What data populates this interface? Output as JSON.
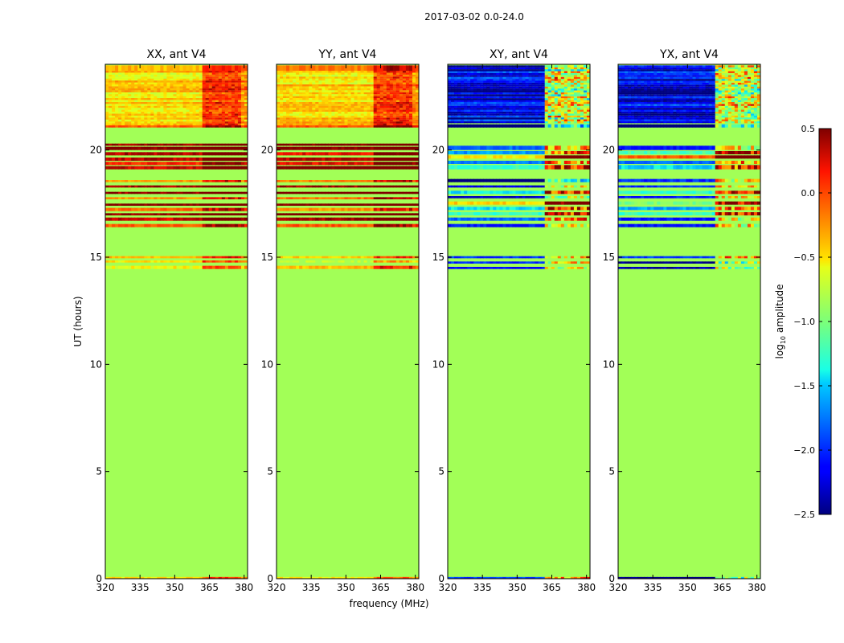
{
  "figure": {
    "suptitle": "2017-03-02 0.0-24.0"
  },
  "chart_data": {
    "type": "heatmap",
    "panels": [
      {
        "id": "xx",
        "title": "XX, ant V4",
        "style": "auto"
      },
      {
        "id": "yy",
        "title": "YY, ant V4",
        "style": "auto"
      },
      {
        "id": "xy",
        "title": "XY, ant V4",
        "style": "cross"
      },
      {
        "id": "yx",
        "title": "YX, ant V4",
        "style": "cross"
      }
    ],
    "xlabel": "frequency (MHz)",
    "ylabel": "UT (hours)",
    "xlim": [
      320,
      381.5
    ],
    "ylim": [
      0,
      24
    ],
    "xticks": [
      320,
      335,
      350,
      365,
      380
    ],
    "yticks": [
      0,
      5,
      10,
      15,
      20
    ],
    "background_value": -0.85,
    "colorbar": {
      "label_main": "log",
      "label_sub": "10",
      "label_rest": " amplitude",
      "vmin": -2.5,
      "vmax": 0.5,
      "ticks": [
        "0.5",
        "0.0",
        "−0.5",
        "−1.0",
        "−1.5",
        "−2.0",
        "−2.5"
      ],
      "tick_values": [
        0.5,
        0.0,
        -0.5,
        -1.0,
        -1.5,
        -2.0,
        -2.5
      ],
      "colormap": "jet"
    },
    "observed_ut_ranges": [
      [
        0.0,
        0.08
      ],
      [
        14.45,
        15.05
      ],
      [
        16.4,
        18.7
      ],
      [
        19.1,
        20.3
      ],
      [
        21.05,
        23.95
      ]
    ]
  }
}
